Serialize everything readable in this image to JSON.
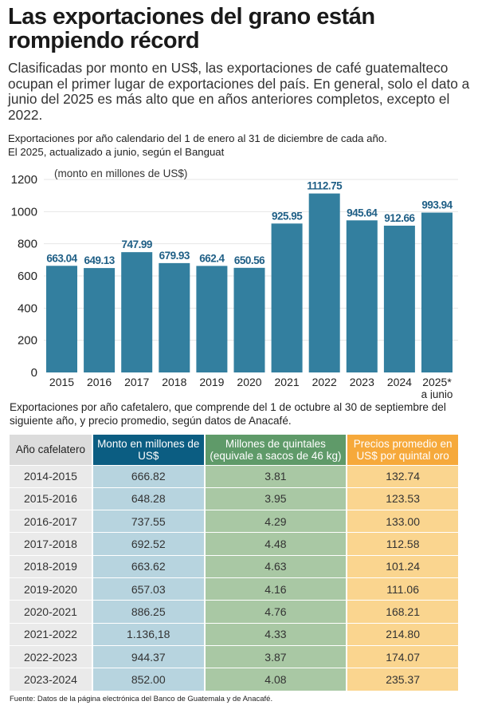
{
  "title": "Las exportaciones del grano están rompiendo récord",
  "subtitle": "Clasificadas por monto en US$, las exportaciones de café guatemalteco ocupan el primer lugar de exportaciones del país. En general, solo el dato a junio del 2025 es más alto que en años anteriores completos, excepto el 2022.",
  "chart_subtitle_1": "Exportaciones por año calendario del 1 de enero al 31 de diciembre de cada año.",
  "chart_subtitle_2": "El 2025, actualizado a junio, según el Banguat",
  "chart_data": {
    "type": "bar",
    "title": "",
    "ylabel": "(monto en millones de US$)",
    "xlabel": "",
    "categories": [
      "2015",
      "2016",
      "2017",
      "2018",
      "2019",
      "2020",
      "2021",
      "2022",
      "2023",
      "2024",
      "2025*"
    ],
    "category_note": "a junio",
    "values": [
      663.04,
      649.13,
      747.99,
      679.93,
      662.4,
      650.56,
      925.95,
      1112.75,
      945.64,
      912.66,
      993.94
    ],
    "value_labels": [
      "663.04",
      "649.13",
      "747.99",
      "679.93",
      "662.4",
      "650.56",
      "925.95",
      "1112.75",
      "945.64",
      "912.66",
      "993.94"
    ],
    "ylim": [
      0,
      1200
    ],
    "yticks": [
      "0",
      "200",
      "400",
      "600",
      "800",
      "1000",
      "1200"
    ],
    "grid": true,
    "bar_color": "#337f9f",
    "label_color": "#1f5f86"
  },
  "table_subtitle": "Exportaciones por año cafetalero, que comprende del 1 de octubre al 30 de septiembre del siguiente año, y precio promedio, según datos de Anacafé.",
  "table": {
    "headers": [
      "Año cafelatero",
      "Monto en millones de US$",
      "Millones de quintales (equivale a sacos de 46 kg)",
      "Precios promedio en US$ por quintal oro"
    ],
    "rows": [
      [
        "2014-2015",
        "666.82",
        "3.81",
        "132.74"
      ],
      [
        "2015-2016",
        "648.28",
        "3.95",
        "123.53"
      ],
      [
        "2016-2017",
        "737.55",
        "4.29",
        "133.00"
      ],
      [
        "2017-2018",
        "692.52",
        "4.48",
        "112.58"
      ],
      [
        "2018-2019",
        "663.62",
        "4.63",
        "101.24"
      ],
      [
        "2019-2020",
        "657.03",
        "4.16",
        "111.06"
      ],
      [
        "2020-2021",
        "886.25",
        "4.76",
        "168.21"
      ],
      [
        "2021-2022",
        "1.136,18",
        "4.33",
        "214.80"
      ],
      [
        "2022-2023",
        "944.37",
        "3.87",
        "174.07"
      ],
      [
        "2023-2024",
        "852.00",
        "4.08",
        "235.37"
      ]
    ]
  },
  "footer": "Fuente: Datos de la página electrónica del Banco de Guatemala y de Anacafé."
}
